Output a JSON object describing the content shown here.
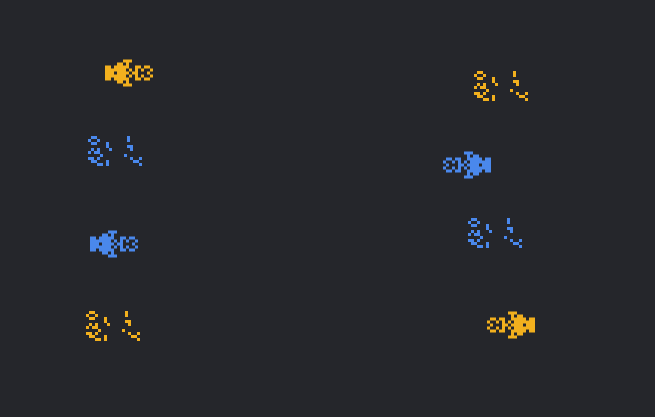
{
  "board": {
    "background": "#25262b"
  },
  "palette": {
    "yellow": "#f2b01e",
    "blue": "#4a88ec"
  },
  "patterns": {
    "ship": [
      "......###.......",
      "....##.#........",
      "##.#####..##.##.",
      "#######.#.#.#..#",
      "###.####.##...#.",
      "#######.#.#.#..#",
      "##.#####..##.##.",
      "....##.#........",
      "......###......."
    ],
    "scatter": [
      ".##..........#....",
      "#..#.........#....",
      ".##...#...........",
      "......#......##...",
      ".#.#...#......#...",
      "#.##..............",
      "....#.......#.....",
      "##.#..........#..#",
      ".##...#........##.",
      "...##.#..........#"
    ]
  },
  "colonies": [
    {
      "id": "yellow-ship-top-left",
      "pattern": "ship",
      "color": "yellow",
      "facing": "right"
    },
    {
      "id": "blue-scatter-left-1",
      "pattern": "scatter",
      "color": "blue",
      "facing": "right"
    },
    {
      "id": "blue-ship-left",
      "pattern": "ship",
      "color": "blue",
      "facing": "right"
    },
    {
      "id": "yellow-scatter-bottom-left",
      "pattern": "scatter",
      "color": "yellow",
      "facing": "right"
    },
    {
      "id": "yellow-scatter-top-right",
      "pattern": "scatter",
      "color": "yellow",
      "facing": "right"
    },
    {
      "id": "blue-ship-right",
      "pattern": "ship",
      "color": "blue",
      "facing": "left"
    },
    {
      "id": "blue-scatter-right",
      "pattern": "scatter",
      "color": "blue",
      "facing": "right"
    },
    {
      "id": "yellow-ship-bottom-right",
      "pattern": "ship",
      "color": "yellow",
      "facing": "left"
    }
  ]
}
